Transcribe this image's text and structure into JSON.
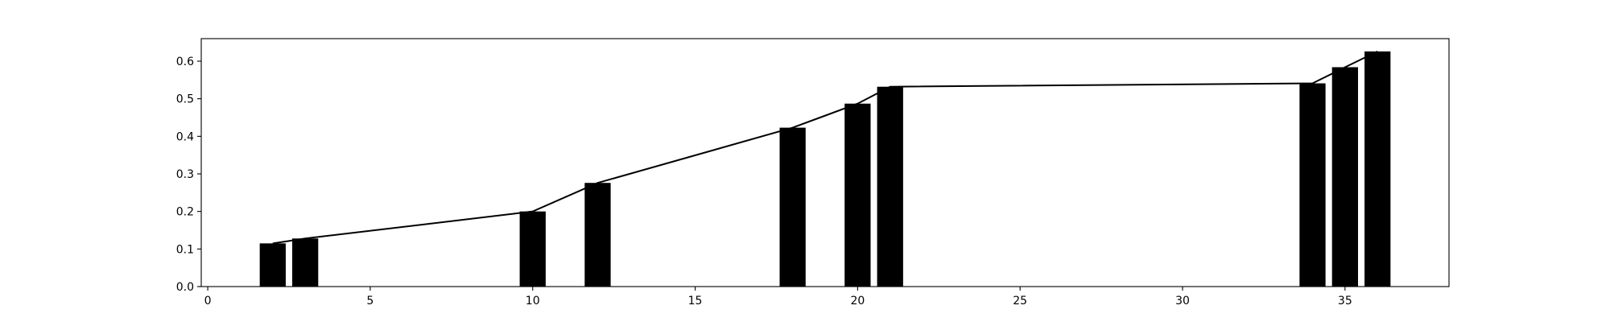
{
  "chart_data": {
    "type": "bar",
    "title": "",
    "xlabel": "",
    "ylabel": "",
    "xlim": [
      -0.2,
      38.2
    ],
    "ylim": [
      0,
      0.66
    ],
    "grid": false,
    "bar_width": 0.8,
    "bar_color": "#000000",
    "line_color": "#000000",
    "x": [
      2,
      3,
      10,
      12,
      18,
      20,
      21,
      34,
      35,
      36
    ],
    "values": [
      0.115,
      0.128,
      0.2,
      0.276,
      0.423,
      0.487,
      0.532,
      0.541,
      0.584,
      0.626
    ],
    "x_ticks": [
      0,
      5,
      10,
      15,
      20,
      25,
      30,
      35
    ],
    "x_tick_labels": [
      "0",
      "5",
      "10",
      "15",
      "20",
      "25",
      "30",
      "35"
    ],
    "y_ticks": [
      0,
      0.1,
      0.2,
      0.3,
      0.4,
      0.5,
      0.6
    ],
    "y_tick_labels": [
      "0.0",
      "0.1",
      "0.2",
      "0.3",
      "0.4",
      "0.5",
      "0.6"
    ]
  }
}
